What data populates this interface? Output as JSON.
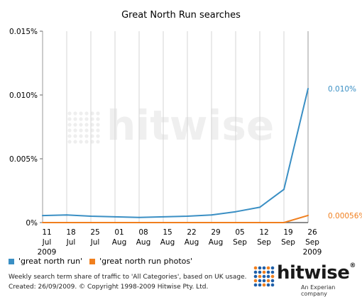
{
  "chart_data": {
    "type": "line",
    "title": "Great North Run searches",
    "x_labels": [
      [
        "11",
        "Jul",
        "2009"
      ],
      [
        "18",
        "Jul",
        ""
      ],
      [
        "25",
        "Jul",
        ""
      ],
      [
        "01",
        "Aug",
        ""
      ],
      [
        "08",
        "Aug",
        ""
      ],
      [
        "15",
        "Aug",
        ""
      ],
      [
        "22",
        "Aug",
        ""
      ],
      [
        "29",
        "Aug",
        ""
      ],
      [
        "05",
        "Sep",
        ""
      ],
      [
        "12",
        "Sep",
        ""
      ],
      [
        "19",
        "Sep",
        ""
      ],
      [
        "26",
        "Sep",
        "2009"
      ]
    ],
    "y_ticks": [
      "0%",
      "0.005%",
      "0.010%",
      "0.015%"
    ],
    "y_tick_values": [
      0,
      0.005,
      0.01,
      0.015
    ],
    "ylim": [
      0,
      0.015
    ],
    "series": [
      {
        "name": "'great north run'",
        "color": "#3a8fc4",
        "values": [
          0.00055,
          0.0006,
          0.0005,
          0.00045,
          0.0004,
          0.00045,
          0.0005,
          0.0006,
          0.00085,
          0.0012,
          0.0026,
          0.0105
        ],
        "end_label": "0.010%"
      },
      {
        "name": "'great north run photos'",
        "color": "#f07f1e",
        "values": [
          0.0,
          0.0,
          0.0,
          0.0,
          0.0,
          0.0,
          0.0,
          0.0,
          0.0,
          0.0,
          0.0,
          0.00056
        ],
        "end_label": "0.00056%"
      }
    ],
    "grid": "vertical",
    "legend_position": "bottom-left"
  },
  "footer": {
    "line1": "Weekly search term share of traffic to 'All Categories', based on UK usage.",
    "line2": "Created: 26/09/2009. © Copyright 1998-2009 Hitwise Pty. Ltd."
  },
  "watermark": "hitwise",
  "logo": {
    "word": "hitwise",
    "reg": "®",
    "sub": "An Experian company"
  }
}
